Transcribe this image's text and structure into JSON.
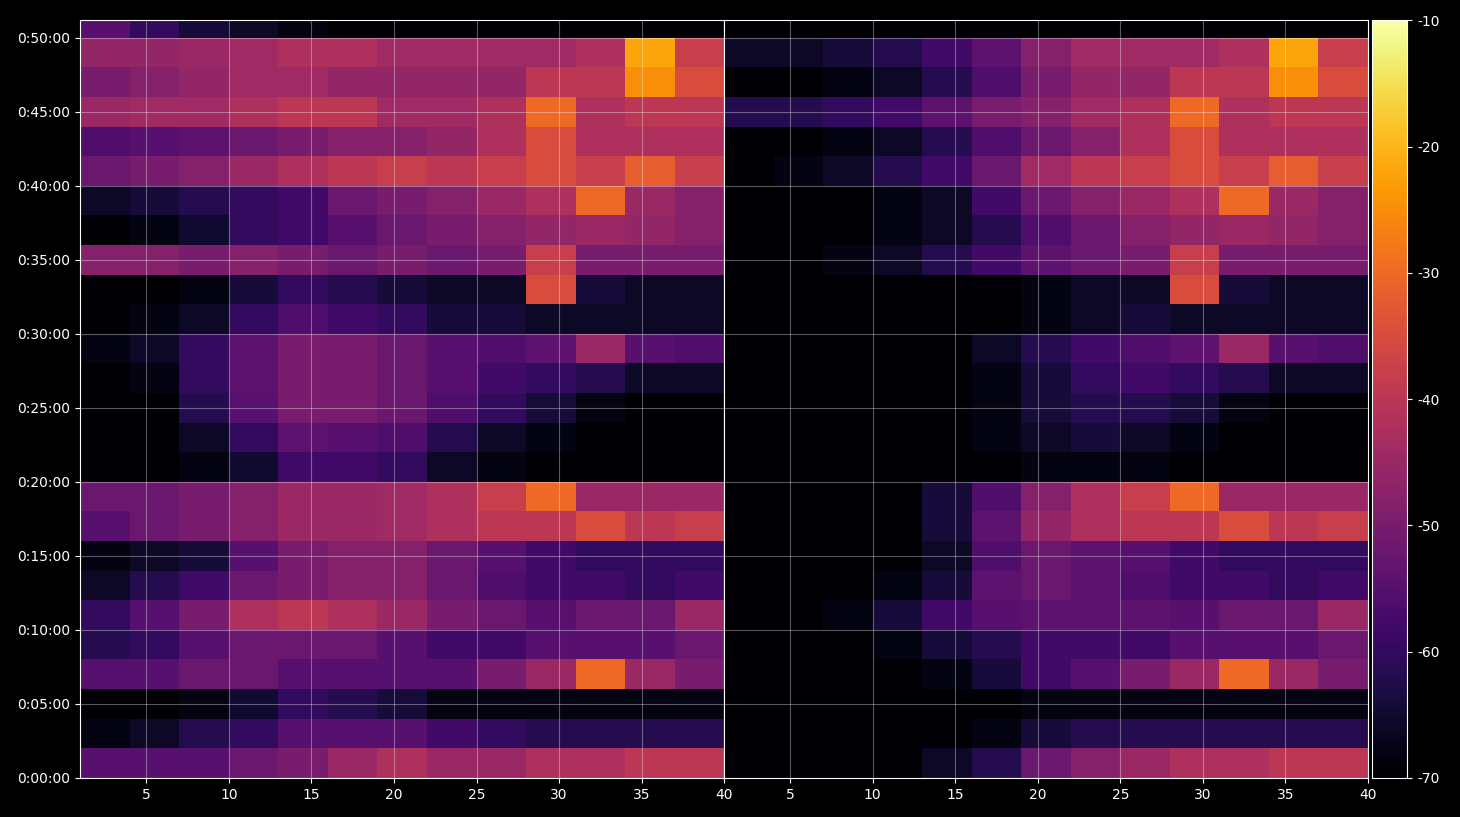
{
  "chart_data": [
    {
      "type": "heatmap",
      "grid": true,
      "x": [
        1,
        4,
        7,
        10,
        13,
        16,
        19,
        22,
        25,
        28,
        31,
        34,
        37,
        40
      ],
      "y": [
        0,
        120,
        240,
        360,
        480,
        600,
        720,
        840,
        960,
        1080,
        1200,
        1320,
        1440,
        1560,
        1680,
        1800,
        1920,
        2040,
        2160,
        2280,
        2400,
        2520,
        2640,
        2760,
        2880,
        3000,
        3120
      ],
      "xlim": [
        1,
        40
      ],
      "xticks": [
        5,
        10,
        15,
        20,
        25,
        30,
        35,
        40
      ],
      "ylim": [
        0,
        3070
      ],
      "yticks": [
        {
          "value": 0,
          "label": "0:00:00"
        },
        {
          "value": 300,
          "label": "0:05:00"
        },
        {
          "value": 600,
          "label": "0:10:00"
        },
        {
          "value": 900,
          "label": "0:15:00"
        },
        {
          "value": 1200,
          "label": "0:20:00"
        },
        {
          "value": 1500,
          "label": "0:25:00"
        },
        {
          "value": 1800,
          "label": "0:30:00"
        },
        {
          "value": 2100,
          "label": "0:35:00"
        },
        {
          "value": 2400,
          "label": "0:40:00"
        },
        {
          "value": 2700,
          "label": "0:45:00"
        },
        {
          "value": 3000,
          "label": "0:50:00"
        }
      ],
      "values": [
        [
          -55,
          -55,
          -55,
          -52,
          -50,
          -45,
          -42,
          -45,
          -45,
          -42,
          -42,
          -40,
          -40
        ],
        [
          -68,
          -66,
          -62,
          -60,
          -55,
          -55,
          -55,
          -58,
          -60,
          -62,
          -62,
          -62,
          -62
        ],
        [
          -70,
          -70,
          -68,
          -65,
          -60,
          -62,
          -64,
          -68,
          -68,
          -68,
          -68,
          -68,
          -68
        ],
        [
          -55,
          -55,
          -52,
          -52,
          -55,
          -55,
          -55,
          -55,
          -50,
          -45,
          -30,
          -45,
          -50
        ],
        [
          -62,
          -60,
          -55,
          -52,
          -52,
          -52,
          -55,
          -58,
          -58,
          -55,
          -55,
          -55,
          -52
        ],
        [
          -60,
          -55,
          -50,
          -42,
          -40,
          -42,
          -45,
          -50,
          -52,
          -55,
          -52,
          -52,
          -45
        ],
        [
          -66,
          -62,
          -58,
          -52,
          -50,
          -48,
          -48,
          -52,
          -56,
          -58,
          -58,
          -60,
          -58
        ],
        [
          -68,
          -66,
          -64,
          -55,
          -50,
          -48,
          -48,
          -52,
          -55,
          -58,
          -60,
          -60,
          -60
        ],
        [
          -55,
          -52,
          -50,
          -48,
          -45,
          -45,
          -44,
          -42,
          -40,
          -40,
          -35,
          -40,
          -38
        ],
        [
          -52,
          -52,
          -50,
          -48,
          -45,
          -45,
          -44,
          -42,
          -38,
          -30,
          -45,
          -45,
          -45
        ],
        [
          -70,
          -70,
          -68,
          -65,
          -58,
          -58,
          -60,
          -66,
          -68,
          -70,
          -70,
          -70,
          -70
        ],
        [
          -70,
          -70,
          -66,
          -60,
          -54,
          -55,
          -56,
          -62,
          -66,
          -68,
          -70,
          -70,
          -70
        ],
        [
          -70,
          -70,
          -62,
          -55,
          -50,
          -50,
          -52,
          -56,
          -60,
          -64,
          -68,
          -70,
          -70
        ],
        [
          -70,
          -68,
          -60,
          -54,
          -50,
          -50,
          -52,
          -55,
          -58,
          -60,
          -62,
          -66,
          -66
        ],
        [
          -68,
          -66,
          -60,
          -54,
          -50,
          -50,
          -52,
          -55,
          -56,
          -54,
          -45,
          -55,
          -56
        ],
        [
          -70,
          -68,
          -66,
          -60,
          -56,
          -58,
          -60,
          -64,
          -64,
          -66,
          -66,
          -66,
          -66
        ],
        [
          -70,
          -70,
          -68,
          -64,
          -60,
          -62,
          -64,
          -66,
          -66,
          -35,
          -64,
          -66,
          -66
        ],
        [
          -48,
          -48,
          -50,
          -48,
          -50,
          -52,
          -50,
          -52,
          -50,
          -38,
          -50,
          -50,
          -50
        ],
        [
          -70,
          -68,
          -65,
          -60,
          -58,
          -55,
          -52,
          -50,
          -48,
          -46,
          -45,
          -46,
          -48
        ],
        [
          -66,
          -64,
          -62,
          -60,
          -58,
          -52,
          -50,
          -48,
          -45,
          -42,
          -30,
          -45,
          -48
        ],
        [
          -52,
          -50,
          -48,
          -45,
          -42,
          -40,
          -38,
          -40,
          -38,
          -35,
          -38,
          -32,
          -38
        ],
        [
          -56,
          -55,
          -54,
          -52,
          -50,
          -48,
          -48,
          -46,
          -42,
          -35,
          -42,
          -42,
          -42
        ],
        [
          -45,
          -44,
          -44,
          -42,
          -40,
          -40,
          -44,
          -44,
          -42,
          -30,
          -42,
          -40,
          -40
        ],
        [
          -50,
          -48,
          -46,
          -44,
          -44,
          -46,
          -46,
          -46,
          -46,
          -40,
          -40,
          -25,
          -35
        ],
        [
          -46,
          -46,
          -45,
          -44,
          -42,
          -42,
          -44,
          -44,
          -44,
          -44,
          -42,
          -22,
          -38
        ],
        [
          -55,
          -60,
          -64,
          -66,
          -68,
          -70,
          -70,
          -70,
          -70,
          -70,
          -70,
          -70,
          -70
        ]
      ]
    },
    {
      "type": "heatmap",
      "grid": true,
      "tick_labels": "x",
      "x": [
        1,
        4,
        7,
        10,
        13,
        16,
        19,
        22,
        25,
        28,
        31,
        34,
        37,
        40
      ],
      "y": [
        0,
        120,
        240,
        360,
        480,
        600,
        720,
        840,
        960,
        1080,
        1200,
        1320,
        1440,
        1560,
        1680,
        1800,
        1920,
        2040,
        2160,
        2280,
        2400,
        2520,
        2640,
        2760,
        2880,
        3000,
        3120
      ],
      "xlim": [
        1,
        40
      ],
      "xticks": [
        5,
        10,
        15,
        20,
        25,
        30,
        35,
        40
      ],
      "ylim": [
        0,
        3070
      ],
      "yticks": [
        0,
        300,
        600,
        900,
        1200,
        1500,
        1800,
        2100,
        2400,
        2700,
        3000
      ],
      "colorbar": {
        "range": [
          -70,
          -10
        ],
        "ticks": [
          -70,
          -60,
          -50,
          -40,
          -30,
          -20,
          -10
        ]
      },
      "values": [
        [
          -70,
          -70,
          -70,
          -70,
          -66,
          -62,
          -52,
          -48,
          -45,
          -42,
          -42,
          -40,
          -40
        ],
        [
          -70,
          -70,
          -70,
          -70,
          -70,
          -68,
          -64,
          -62,
          -62,
          -62,
          -62,
          -62,
          -62
        ],
        [
          -70,
          -70,
          -70,
          -70,
          -70,
          -70,
          -68,
          -68,
          -68,
          -68,
          -68,
          -68,
          -68
        ],
        [
          -70,
          -70,
          -70,
          -70,
          -68,
          -64,
          -58,
          -55,
          -50,
          -45,
          -30,
          -45,
          -50
        ],
        [
          -70,
          -70,
          -70,
          -68,
          -64,
          -62,
          -58,
          -58,
          -58,
          -55,
          -55,
          -55,
          -52
        ],
        [
          -70,
          -70,
          -68,
          -64,
          -58,
          -55,
          -54,
          -54,
          -54,
          -55,
          -52,
          -52,
          -45
        ],
        [
          -70,
          -70,
          -70,
          -68,
          -64,
          -54,
          -52,
          -54,
          -56,
          -58,
          -58,
          -60,
          -58
        ],
        [
          -70,
          -70,
          -70,
          -70,
          -66,
          -56,
          -52,
          -54,
          -55,
          -58,
          -60,
          -60,
          -60
        ],
        [
          -70,
          -70,
          -70,
          -70,
          -64,
          -54,
          -46,
          -42,
          -40,
          -40,
          -35,
          -40,
          -38
        ],
        [
          -70,
          -70,
          -70,
          -70,
          -64,
          -56,
          -48,
          -42,
          -38,
          -30,
          -45,
          -45,
          -45
        ],
        [
          -70,
          -70,
          -70,
          -70,
          -70,
          -70,
          -68,
          -68,
          -68,
          -70,
          -70,
          -70,
          -70
        ],
        [
          -70,
          -70,
          -70,
          -70,
          -70,
          -68,
          -66,
          -64,
          -66,
          -68,
          -70,
          -70,
          -70
        ],
        [
          -70,
          -70,
          -70,
          -70,
          -70,
          -68,
          -64,
          -62,
          -62,
          -64,
          -68,
          -70,
          -70
        ],
        [
          -70,
          -70,
          -70,
          -70,
          -70,
          -68,
          -64,
          -60,
          -58,
          -60,
          -62,
          -66,
          -66
        ],
        [
          -70,
          -70,
          -70,
          -70,
          -70,
          -66,
          -62,
          -58,
          -56,
          -54,
          -45,
          -55,
          -56
        ],
        [
          -70,
          -70,
          -70,
          -70,
          -70,
          -70,
          -68,
          -66,
          -64,
          -66,
          -66,
          -66,
          -66
        ],
        [
          -70,
          -70,
          -70,
          -70,
          -70,
          -70,
          -68,
          -66,
          -66,
          -35,
          -64,
          -66,
          -66
        ],
        [
          -70,
          -70,
          -68,
          -66,
          -62,
          -58,
          -54,
          -52,
          -50,
          -38,
          -50,
          -50,
          -50
        ],
        [
          -70,
          -70,
          -70,
          -68,
          -66,
          -62,
          -56,
          -52,
          -48,
          -46,
          -45,
          -46,
          -48
        ],
        [
          -70,
          -70,
          -70,
          -68,
          -66,
          -58,
          -52,
          -48,
          -45,
          -42,
          -30,
          -45,
          -48
        ],
        [
          -70,
          -68,
          -66,
          -62,
          -58,
          -52,
          -44,
          -40,
          -38,
          -35,
          -38,
          -32,
          -38
        ],
        [
          -70,
          -70,
          -68,
          -66,
          -62,
          -56,
          -52,
          -48,
          -42,
          -35,
          -42,
          -42,
          -42
        ],
        [
          -62,
          -62,
          -60,
          -58,
          -54,
          -50,
          -48,
          -44,
          -42,
          -30,
          -42,
          -40,
          -40
        ],
        [
          -70,
          -70,
          -68,
          -66,
          -62,
          -56,
          -50,
          -46,
          -46,
          -40,
          -40,
          -25,
          -35
        ],
        [
          -66,
          -66,
          -64,
          -62,
          -58,
          -54,
          -48,
          -44,
          -44,
          -44,
          -42,
          -22,
          -38
        ],
        [
          -70,
          -70,
          -70,
          -70,
          -70,
          -70,
          -70,
          -70,
          -70,
          -70,
          -70,
          -70,
          -70
        ]
      ]
    }
  ]
}
